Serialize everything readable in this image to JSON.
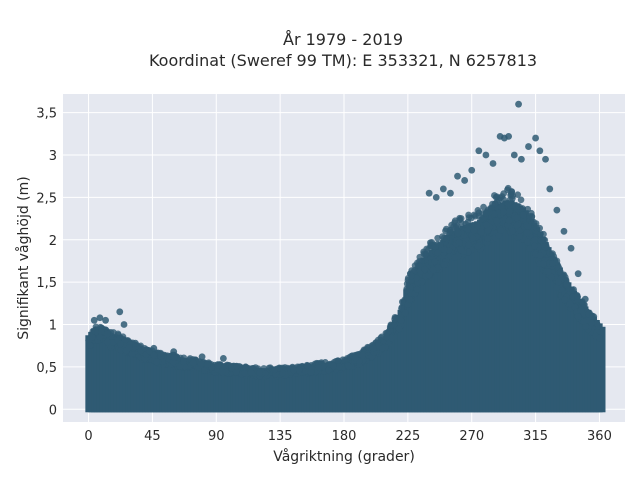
{
  "chart_data": {
    "type": "scatter",
    "title_line1": "År 1979 - 2019",
    "title_line2": "Koordinat (Sweref 99 TM): E 353321, N 6257813",
    "xlabel": "Vågriktning (grader)",
    "ylabel": "Signifikant våghöjd (m)",
    "xlim": [
      -18,
      378
    ],
    "ylim": [
      -0.15,
      3.72
    ],
    "xticks": [
      0,
      45,
      90,
      135,
      180,
      225,
      270,
      315,
      360
    ],
    "xtick_labels": [
      "0",
      "45",
      "90",
      "135",
      "180",
      "225",
      "270",
      "315",
      "360"
    ],
    "yticks": [
      0,
      0.5,
      1,
      1.5,
      2,
      2.5,
      3,
      3.5
    ],
    "ytick_labels": [
      "0",
      "0,5",
      "1",
      "1,5",
      "2",
      "2,5",
      "3",
      "3,5"
    ],
    "grid": true,
    "marker_color": "#2f5a73",
    "background_color": "#e5e8f0",
    "envelope": {
      "direction_deg": [
        0,
        5,
        10,
        15,
        20,
        25,
        30,
        40,
        45,
        60,
        75,
        90,
        105,
        120,
        135,
        150,
        165,
        180,
        190,
        200,
        210,
        220,
        225,
        235,
        245,
        255,
        265,
        275,
        285,
        295,
        305,
        315,
        325,
        335,
        345,
        355,
        360
      ],
      "upper_height_m": [
        0.85,
        0.95,
        0.92,
        0.85,
        0.85,
        0.8,
        0.75,
        0.68,
        0.65,
        0.6,
        0.55,
        0.5,
        0.48,
        0.46,
        0.46,
        0.48,
        0.52,
        0.55,
        0.62,
        0.72,
        0.85,
        1.15,
        1.45,
        1.75,
        1.9,
        2.05,
        2.15,
        2.2,
        2.35,
        2.45,
        2.35,
        2.1,
        1.8,
        1.5,
        1.25,
        1.05,
        0.95
      ]
    },
    "outliers": [
      {
        "x": 4,
        "y": 1.05
      },
      {
        "x": 8,
        "y": 1.08
      },
      {
        "x": 12,
        "y": 1.05
      },
      {
        "x": 22,
        "y": 1.15
      },
      {
        "x": 25,
        "y": 1.0
      },
      {
        "x": 33,
        "y": 0.78
      },
      {
        "x": 46,
        "y": 0.72
      },
      {
        "x": 60,
        "y": 0.68
      },
      {
        "x": 80,
        "y": 0.62
      },
      {
        "x": 95,
        "y": 0.6
      },
      {
        "x": 240,
        "y": 2.55
      },
      {
        "x": 245,
        "y": 2.5
      },
      {
        "x": 250,
        "y": 2.6
      },
      {
        "x": 255,
        "y": 2.55
      },
      {
        "x": 260,
        "y": 2.75
      },
      {
        "x": 265,
        "y": 2.7
      },
      {
        "x": 270,
        "y": 2.82
      },
      {
        "x": 275,
        "y": 3.05
      },
      {
        "x": 280,
        "y": 3.0
      },
      {
        "x": 285,
        "y": 2.9
      },
      {
        "x": 290,
        "y": 3.22
      },
      {
        "x": 293,
        "y": 3.2
      },
      {
        "x": 296,
        "y": 3.22
      },
      {
        "x": 300,
        "y": 3.0
      },
      {
        "x": 303,
        "y": 3.6
      },
      {
        "x": 305,
        "y": 2.95
      },
      {
        "x": 310,
        "y": 3.1
      },
      {
        "x": 315,
        "y": 3.2
      },
      {
        "x": 318,
        "y": 3.05
      },
      {
        "x": 322,
        "y": 2.95
      },
      {
        "x": 325,
        "y": 2.6
      },
      {
        "x": 330,
        "y": 2.35
      },
      {
        "x": 335,
        "y": 2.1
      },
      {
        "x": 340,
        "y": 1.9
      },
      {
        "x": 345,
        "y": 1.6
      },
      {
        "x": 350,
        "y": 1.3
      },
      {
        "x": 355,
        "y": 1.1
      }
    ]
  }
}
